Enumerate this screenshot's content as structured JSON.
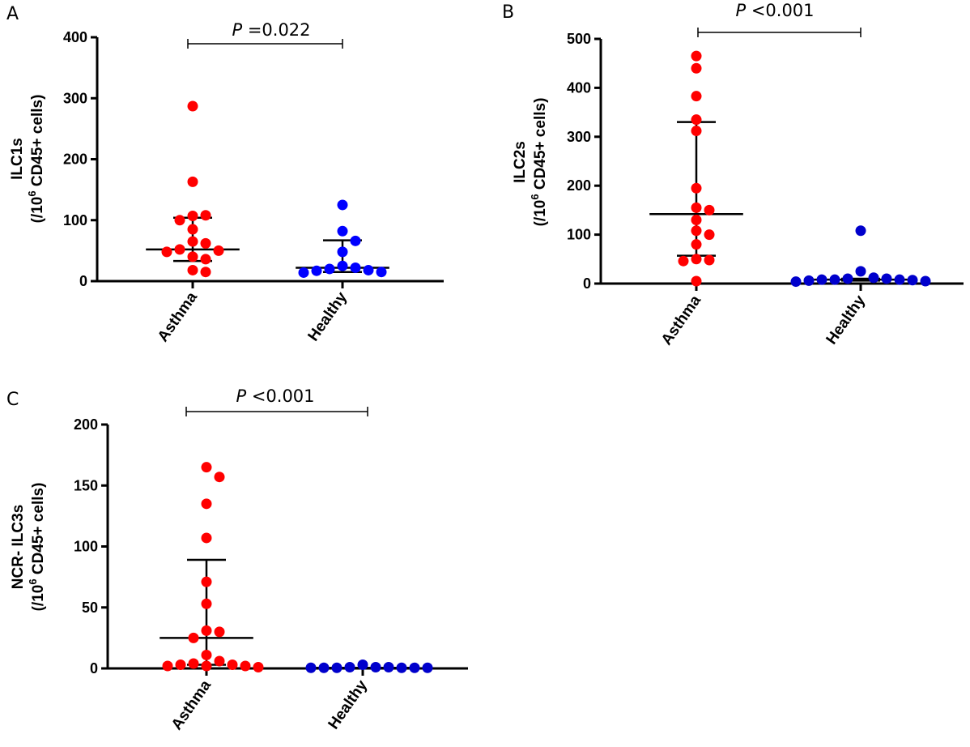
{
  "chart_data": [
    {
      "type": "scatter",
      "panel": "A",
      "ylabel_line1": "ILC1s",
      "ylabel_line2_prefix": "(/10",
      "ylabel_sup": "6",
      "ylabel_line2_suffix": " CD45+ cells)",
      "categories": [
        "Asthma",
        "Healthy"
      ],
      "ylim": [
        0,
        400
      ],
      "yticks": [
        0,
        100,
        200,
        300,
        400
      ],
      "p_label": "P",
      "p_value": " =0.022",
      "colors": [
        "#ff0000",
        "#0000ff"
      ],
      "series": [
        {
          "name": "Asthma",
          "values": [
            287,
            163,
            107,
            108,
            100,
            85,
            65,
            62,
            52,
            50,
            48,
            40,
            36,
            18,
            15
          ]
        },
        {
          "name": "Healthy",
          "values": [
            125,
            82,
            66,
            48,
            25,
            22,
            20,
            18,
            17,
            15,
            14
          ]
        }
      ],
      "summary": [
        {
          "median": 52,
          "q1": 33,
          "q3": 104
        },
        {
          "median": 22,
          "q1": 15,
          "q3": 67
        }
      ]
    },
    {
      "type": "scatter",
      "panel": "B",
      "ylabel_line1": "ILC2s",
      "ylabel_line2_prefix": "(/10",
      "ylabel_sup": "6",
      "ylabel_line2_suffix": " CD45+ cells)",
      "categories": [
        "Asthma",
        "Healthy"
      ],
      "ylim": [
        0,
        500
      ],
      "yticks": [
        0,
        100,
        200,
        300,
        400,
        500
      ],
      "p_label": "P",
      "p_value": " <0.001",
      "colors": [
        "#ff0000",
        "#0000cc"
      ],
      "series": [
        {
          "name": "Asthma",
          "values": [
            465,
            440,
            383,
            335,
            312,
            195,
            155,
            150,
            130,
            108,
            100,
            80,
            50,
            48,
            46,
            5
          ]
        },
        {
          "name": "Healthy",
          "values": [
            108,
            25,
            12,
            10,
            10,
            8,
            8,
            8,
            7,
            6,
            5,
            4
          ]
        }
      ],
      "summary": [
        {
          "median": 142,
          "q1": 57,
          "q3": 330
        },
        {
          "median": 8,
          "q1": 6,
          "q3": 10
        }
      ]
    },
    {
      "type": "scatter",
      "panel": "C",
      "ylabel_line1": "NCR- ILC3s",
      "ylabel_line2_prefix": "(/10",
      "ylabel_sup": "6",
      "ylabel_line2_suffix": " CD45+ cells)",
      "categories": [
        "Asthma",
        "Healthy"
      ],
      "ylim": [
        0,
        200
      ],
      "yticks": [
        0,
        50,
        100,
        150,
        200
      ],
      "p_label": "P",
      "p_value": " <0.001",
      "colors": [
        "#ff0000",
        "#0000cc"
      ],
      "series": [
        {
          "name": "Asthma",
          "values": [
            165,
            157,
            135,
            107,
            71,
            53,
            31,
            30,
            25,
            11,
            6,
            4,
            3,
            3,
            2,
            2,
            2,
            1
          ]
        },
        {
          "name": "Healthy",
          "values": [
            3,
            1,
            1,
            1,
            0.5,
            0.5,
            0.5,
            0.5,
            0.5,
            0.5
          ]
        }
      ],
      "summary": [
        {
          "median": 25,
          "q1": 3,
          "q3": 89
        },
        {
          "median": 0.5,
          "q1": 0.5,
          "q3": 0.5
        }
      ]
    }
  ]
}
